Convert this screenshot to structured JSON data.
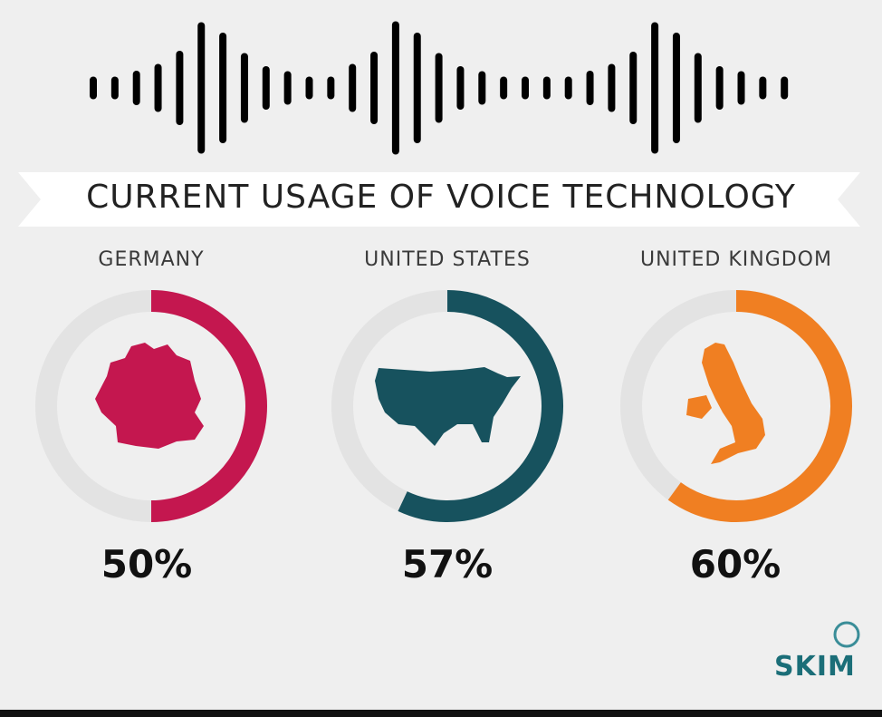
{
  "title": "CURRENT USAGE OF VOICE TECHNOLOGY",
  "logo": {
    "text": "SKIM",
    "color": "#1b6e78"
  },
  "chart_data": {
    "type": "donut",
    "title": "CURRENT USAGE OF VOICE TECHNOLOGY",
    "categories": [
      "GERMANY",
      "UNITED STATES",
      "UNITED KINGDOM"
    ],
    "values": [
      50,
      57,
      60
    ],
    "labels": [
      "50%",
      "57%",
      "60%"
    ],
    "colors": [
      "#c4174f",
      "#17525e",
      "#f07f22"
    ],
    "track_color": "#e3e3e3",
    "max": 100
  },
  "decoration": {
    "waveform_bar_heights": [
      25,
      25,
      38,
      53,
      82,
      145,
      122,
      77,
      48,
      37,
      25,
      25,
      53,
      80,
      147,
      122,
      77,
      48,
      37,
      25,
      25,
      25,
      25,
      38,
      53,
      80,
      145,
      122,
      77,
      48,
      37,
      25,
      25
    ]
  }
}
